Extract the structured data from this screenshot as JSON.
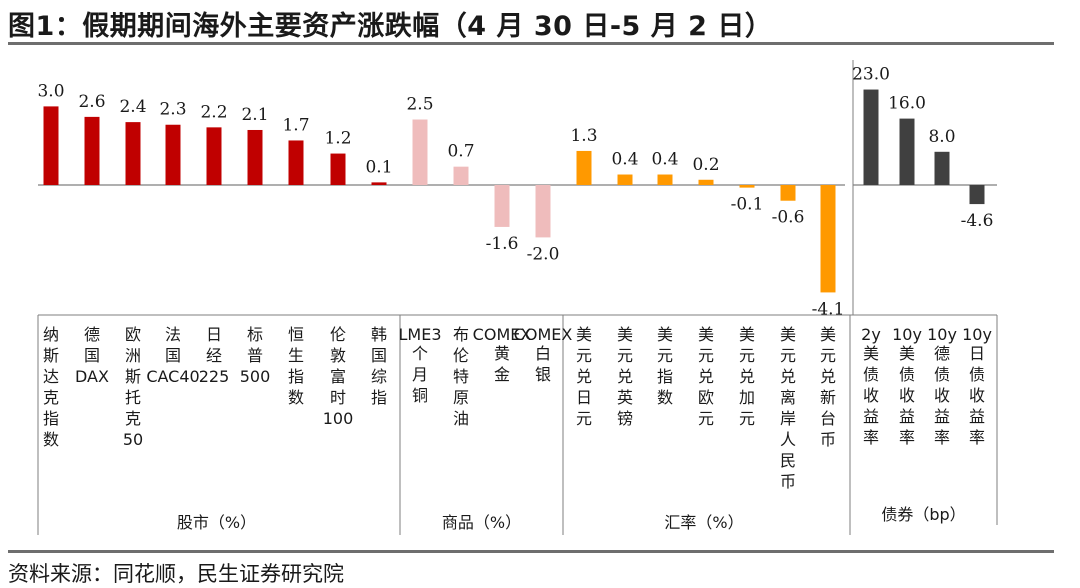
{
  "title": "图1：假期期间海外主要资产涨跌幅（4 月 30 日-5 月 2 日）",
  "source": "资料来源：同花顺，民生证券研究院",
  "colors": {
    "stock": "#c00000",
    "commodity": "#efbcbc",
    "fx": "#ff9900",
    "bond": "#404040"
  },
  "chart_data": {
    "type": "bar",
    "title": "图1：假期期间海外主要资产涨跌幅（4 月 30 日-5 月 2 日）",
    "groups": [
      {
        "name": "股市（%）",
        "color": "#c00000",
        "categories": [
          "纳斯达克指数",
          "德国DAX",
          "欧洲斯托克50",
          "法国CAC40",
          "日经225",
          "标普500",
          "恒生指数",
          "伦敦富时100",
          "韩国综指"
        ],
        "values": [
          3.0,
          2.6,
          2.4,
          2.3,
          2.2,
          2.1,
          1.7,
          1.2,
          0.1
        ]
      },
      {
        "name": "商品（%）",
        "color": "#efbcbc",
        "categories": [
          "LME3个月铜",
          "布伦特原油",
          "COMEX黄金",
          "COMEX白银"
        ],
        "values": [
          2.5,
          0.7,
          -1.6,
          -2.0
        ]
      },
      {
        "name": "汇率（%）",
        "color": "#ff9900",
        "categories": [
          "美元兑日元",
          "美元兑英镑",
          "美元指数",
          "美元兑欧元",
          "美元兑加元",
          "美元兑离岸人民币",
          "美元兑新台币"
        ],
        "values": [
          1.3,
          0.4,
          0.4,
          0.2,
          -0.1,
          -0.6,
          -4.1
        ]
      },
      {
        "name": "债券（bp）",
        "color": "#404040",
        "categories": [
          "2y美债收益率",
          "10y美债收益率",
          "10y德债收益率",
          "10y日债收益率"
        ],
        "values": [
          23.0,
          16.0,
          8.0,
          -4.6
        ]
      }
    ]
  }
}
